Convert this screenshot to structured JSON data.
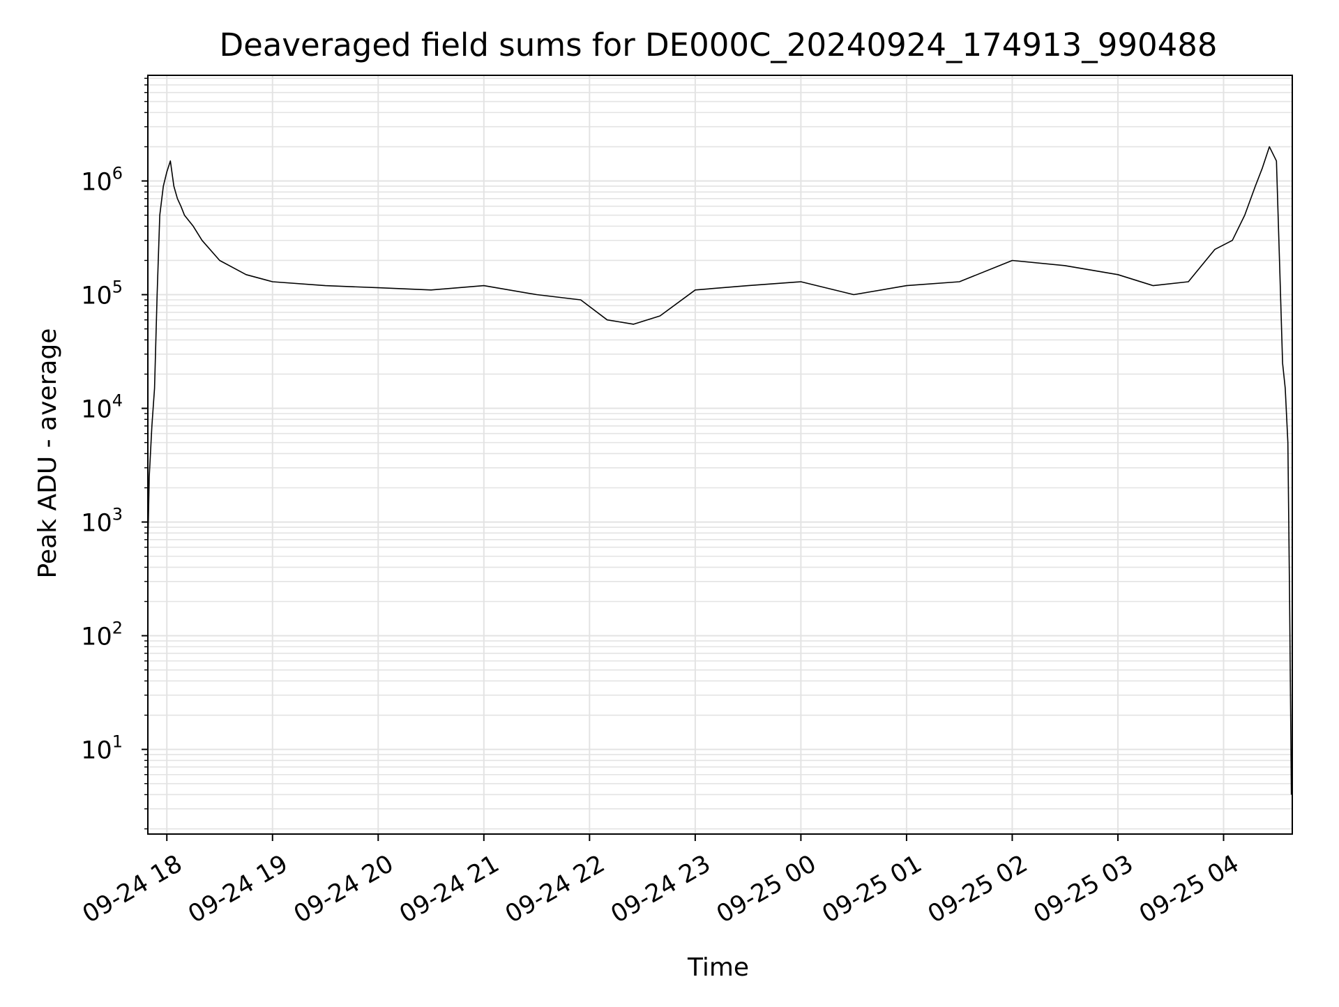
{
  "chart_data": {
    "type": "line",
    "title": "Deaveraged field sums for DE000C_20240924_174913_990488",
    "xlabel": "Time",
    "ylabel": "Peak ADU - average",
    "yscale": "log",
    "ylim": [
      1.8,
      8500000
    ],
    "xlim": [
      "2024-09-24 17:49:13",
      "2024-09-25 04:39:00"
    ],
    "grid": true,
    "colors": {
      "line": "#000000",
      "grid": "#e3e3e3",
      "axis": "#000000",
      "background": "#ffffff"
    },
    "x_ticks": [
      {
        "t": "2024-09-24 18:00",
        "label": "09-24 18"
      },
      {
        "t": "2024-09-24 19:00",
        "label": "09-24 19"
      },
      {
        "t": "2024-09-24 20:00",
        "label": "09-24 20"
      },
      {
        "t": "2024-09-24 21:00",
        "label": "09-24 21"
      },
      {
        "t": "2024-09-24 22:00",
        "label": "09-24 22"
      },
      {
        "t": "2024-09-24 23:00",
        "label": "09-24 23"
      },
      {
        "t": "2024-09-25 00:00",
        "label": "09-25 00"
      },
      {
        "t": "2024-09-25 01:00",
        "label": "09-25 01"
      },
      {
        "t": "2024-09-25 02:00",
        "label": "09-25 02"
      },
      {
        "t": "2024-09-25 03:00",
        "label": "09-25 03"
      },
      {
        "t": "2024-09-25 04:00",
        "label": "09-25 04"
      }
    ],
    "y_ticks": [
      {
        "value": 10,
        "base": "10",
        "exp": "1"
      },
      {
        "value": 100,
        "base": "10",
        "exp": "2"
      },
      {
        "value": 1000,
        "base": "10",
        "exp": "3"
      },
      {
        "value": 10000,
        "base": "10",
        "exp": "4"
      },
      {
        "value": 100000,
        "base": "10",
        "exp": "5"
      },
      {
        "value": 1000000,
        "base": "10",
        "exp": "6"
      }
    ],
    "series": [
      {
        "x": [
          "2024-09-24 17:49:13",
          "2024-09-24 17:50:00",
          "2024-09-24 17:51:30",
          "2024-09-24 17:53:00",
          "2024-09-24 17:54:30",
          "2024-09-24 17:56:00",
          "2024-09-24 17:58:00",
          "2024-09-24 18:00:00",
          "2024-09-24 18:02:00",
          "2024-09-24 18:04:00",
          "2024-09-24 18:06:00",
          "2024-09-24 18:08:00",
          "2024-09-24 18:10:00",
          "2024-09-24 18:15:00",
          "2024-09-24 18:20:00",
          "2024-09-24 18:30:00",
          "2024-09-24 18:45:00",
          "2024-09-24 19:00:00",
          "2024-09-24 19:30:00",
          "2024-09-24 20:00:00",
          "2024-09-24 20:30:00",
          "2024-09-24 21:00:00",
          "2024-09-24 21:30:00",
          "2024-09-24 21:55:00",
          "2024-09-24 22:10:00",
          "2024-09-24 22:25:00",
          "2024-09-24 22:40:00",
          "2024-09-24 23:00:00",
          "2024-09-24 23:30:00",
          "2024-09-25 00:00:00",
          "2024-09-25 00:30:00",
          "2024-09-25 01:00:00",
          "2024-09-25 01:30:00",
          "2024-09-25 02:00:00",
          "2024-09-25 02:30:00",
          "2024-09-25 03:00:00",
          "2024-09-25 03:20:00",
          "2024-09-25 03:40:00",
          "2024-09-25 03:55:00",
          "2024-09-25 04:05:00",
          "2024-09-25 04:12:00",
          "2024-09-25 04:18:00",
          "2024-09-25 04:22:00",
          "2024-09-25 04:26:00",
          "2024-09-25 04:30:00",
          "2024-09-25 04:32:00",
          "2024-09-25 04:33:30",
          "2024-09-25 04:35:00",
          "2024-09-25 04:36:30",
          "2024-09-25 04:37:30",
          "2024-09-25 04:38:30"
        ],
        "y": [
          600,
          2500,
          7000,
          15000,
          100000,
          500000,
          900000,
          1200000,
          1500000,
          900000,
          700000,
          600000,
          500000,
          400000,
          300000,
          200000,
          150000,
          130000,
          120000,
          115000,
          110000,
          120000,
          100000,
          90000,
          60000,
          55000,
          65000,
          110000,
          120000,
          130000,
          100000,
          120000,
          130000,
          200000,
          180000,
          150000,
          120000,
          130000,
          250000,
          300000,
          500000,
          900000,
          1300000,
          2000000,
          1500000,
          150000,
          25000,
          15000,
          5000,
          200,
          4
        ]
      }
    ],
    "annotations": []
  }
}
